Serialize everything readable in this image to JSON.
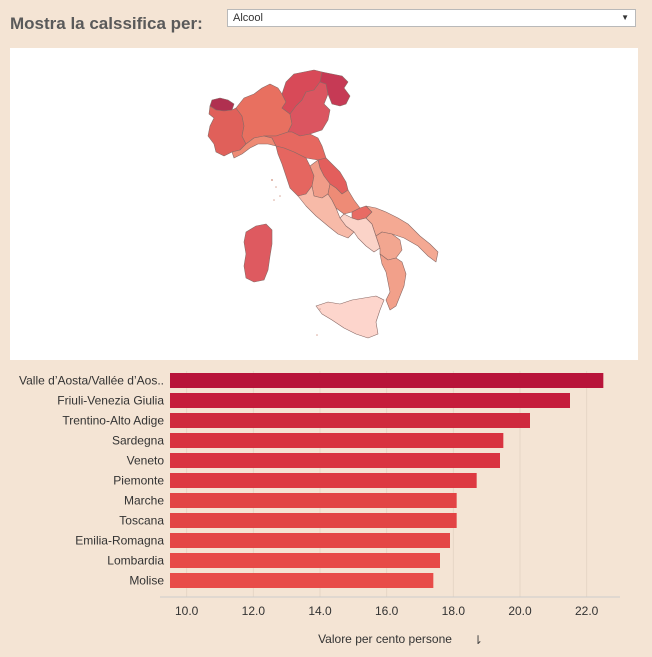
{
  "header": {
    "title": "Mostra la calssifica per:",
    "dropdown_value": "Alcool",
    "dropdown_icon": "chevron-down-icon"
  },
  "map": {
    "region_colors": {
      "valle-daosta": "#b03050",
      "piemonte": "#e0605a",
      "lombardia": "#e87060",
      "trentino-alto-adige": "#d84a58",
      "veneto": "#db5560",
      "friuli-venezia-giulia": "#c63a55",
      "liguria": "#ee8a74",
      "emilia-romagna": "#e66860",
      "toscana": "#e56660",
      "marche": "#e35e5c",
      "umbria": "#f09c88",
      "lazio": "#f7baa8",
      "abruzzo": "#ee8b76",
      "molise": "#e86b64",
      "campania": "#fbd3c8",
      "puglia": "#f4a993",
      "basilicata": "#f2a690",
      "calabria": "#f2a08a",
      "sicilia": "#fdd5cc",
      "sardegna": "#de5a60"
    }
  },
  "chart_data": {
    "type": "bar",
    "orientation": "horizontal",
    "categories": [
      "Valle d’Aosta/Vallée d’Aos..",
      "Friuli-Venezia Giulia",
      "Trentino-Alto Adige",
      "Sardegna",
      "Veneto",
      "Piemonte",
      "Marche",
      "Toscana",
      "Emilia-Romagna",
      "Lombardia",
      "Molise"
    ],
    "values": [
      22.5,
      21.5,
      20.3,
      19.5,
      19.4,
      18.7,
      18.1,
      18.1,
      17.9,
      17.6,
      17.4
    ],
    "colors": [
      "#b8143a",
      "#c51d3c",
      "#cf2a3e",
      "#d83340",
      "#d93441",
      "#dd3a42",
      "#e24445",
      "#e24445",
      "#e44646",
      "#e74a48",
      "#e84c49"
    ],
    "xlim": [
      9.5,
      23
    ],
    "xticks": [
      10.0,
      12.0,
      14.0,
      16.0,
      18.0,
      20.0,
      22.0
    ],
    "xtick_labels": [
      "10.0",
      "12.0",
      "14.0",
      "16.0",
      "18.0",
      "20.0",
      "22.0"
    ],
    "xlabel": "Valore per cento persone",
    "xlabel_icon": "sort-icon",
    "grid": true
  }
}
